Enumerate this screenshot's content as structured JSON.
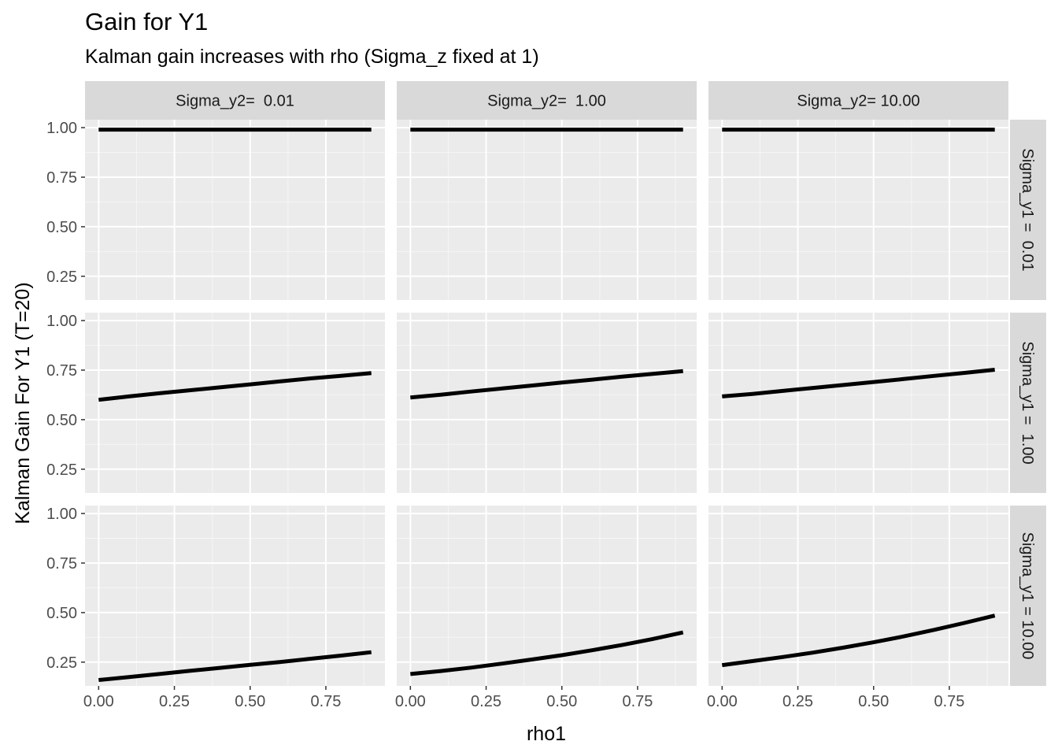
{
  "title": "Gain for Y1",
  "subtitle": "Kalman gain increases with rho (Sigma_z fixed at 1)",
  "chart_data": {
    "type": "line",
    "title": "Gain for Y1",
    "subtitle": "Kalman gain increases with rho (Sigma_z fixed at 1)",
    "xlabel": "rho1",
    "ylabel": "Kalman Gain For Y1 (T=20)",
    "xlim": [
      -0.045,
      0.945
    ],
    "ylim": [
      0.13,
      1.04
    ],
    "x_ticks": [
      0,
      0.25,
      0.5,
      0.75
    ],
    "x_tick_labels": [
      "0.00",
      "0.25",
      "0.50",
      "0.75"
    ],
    "y_ticks": [
      0.25,
      0.5,
      0.75,
      1.0
    ],
    "y_tick_labels": [
      "0.25",
      "0.50",
      "0.75",
      "1.00"
    ],
    "grid": true,
    "facet_cols": [
      "Sigma_y2=  0.01",
      "Sigma_y2=  1.00",
      "Sigma_y2= 10.00"
    ],
    "facet_rows": [
      "Sigma_y1 =  0.01",
      "Sigma_y1 =  1.00",
      "Sigma_y1 = 10.00"
    ],
    "x": [
      0,
      0.1,
      0.2,
      0.3,
      0.4,
      0.5,
      0.6,
      0.7,
      0.8,
      0.9
    ],
    "panels": [
      [
        {
          "values": [
            0.99,
            0.99,
            0.99,
            0.99,
            0.99,
            0.99,
            0.99,
            0.99,
            0.99,
            0.99
          ]
        },
        {
          "values": [
            0.99,
            0.99,
            0.99,
            0.99,
            0.99,
            0.99,
            0.99,
            0.99,
            0.99,
            0.99
          ]
        },
        {
          "values": [
            0.99,
            0.99,
            0.99,
            0.99,
            0.99,
            0.99,
            0.99,
            0.99,
            0.99,
            0.99
          ]
        }
      ],
      [
        {
          "values": [
            0.6,
            0.617,
            0.633,
            0.648,
            0.663,
            0.678,
            0.693,
            0.708,
            0.721,
            0.735
          ]
        },
        {
          "values": [
            0.612,
            0.626,
            0.642,
            0.657,
            0.672,
            0.687,
            0.702,
            0.717,
            0.731,
            0.745
          ]
        },
        {
          "values": [
            0.617,
            0.63,
            0.645,
            0.66,
            0.675,
            0.69,
            0.705,
            0.721,
            0.736,
            0.752
          ]
        }
      ],
      [
        {
          "values": [
            0.16,
            0.175,
            0.19,
            0.206,
            0.221,
            0.236,
            0.251,
            0.267,
            0.283,
            0.3
          ]
        },
        {
          "values": [
            0.19,
            0.205,
            0.222,
            0.242,
            0.263,
            0.285,
            0.31,
            0.337,
            0.367,
            0.4
          ]
        },
        {
          "values": [
            0.235,
            0.255,
            0.276,
            0.298,
            0.323,
            0.35,
            0.38,
            0.413,
            0.448,
            0.485
          ]
        }
      ]
    ]
  }
}
